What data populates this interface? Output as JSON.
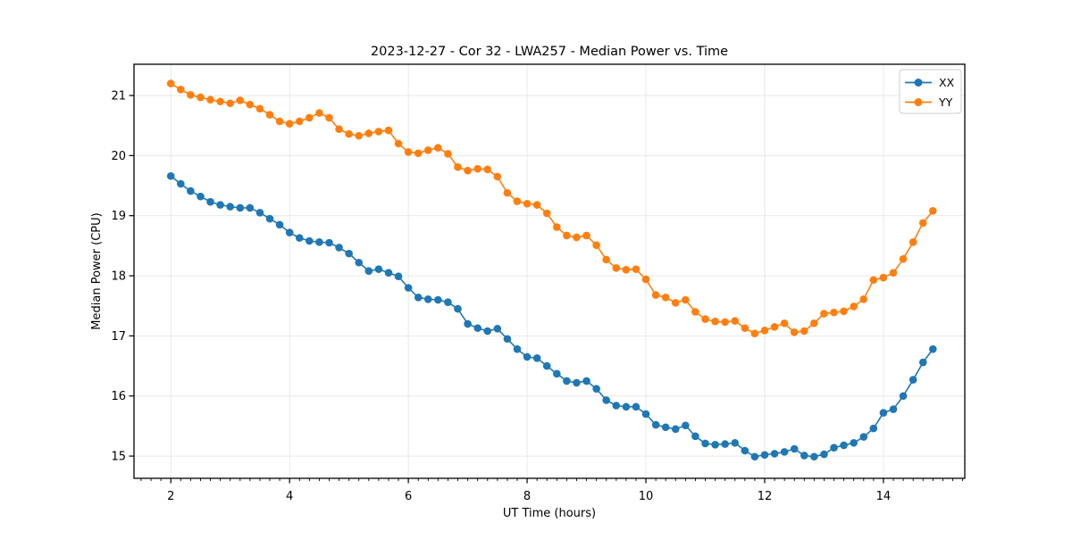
{
  "chart_data": {
    "type": "line",
    "title": "2023-12-27 - Cor 32 - LWA257 - Median Power vs. Time",
    "xlabel": "UT Time (hours)",
    "ylabel": "Median Power (CPU)",
    "grid": true,
    "legend_position": "upper right",
    "background_color": "#ffffff",
    "grid_color": "#e6e6e6",
    "spine_color": "#000000",
    "xlim": [
      1.38,
      15.37
    ],
    "ylim": [
      14.63,
      21.52
    ],
    "xticks": [
      2,
      4,
      6,
      8,
      10,
      12,
      14
    ],
    "yticks": [
      15,
      16,
      17,
      18,
      19,
      20,
      21
    ],
    "x_minor_step": 0.16667,
    "marker": "circle",
    "x": [
      2,
      2.167,
      2.333,
      2.5,
      2.667,
      2.833,
      3,
      3.167,
      3.333,
      3.5,
      3.667,
      3.833,
      4,
      4.167,
      4.333,
      4.5,
      4.667,
      4.833,
      5,
      5.167,
      5.333,
      5.5,
      5.667,
      5.833,
      6,
      6.167,
      6.333,
      6.5,
      6.667,
      6.833,
      7,
      7.167,
      7.333,
      7.5,
      7.667,
      7.833,
      8,
      8.167,
      8.333,
      8.5,
      8.667,
      8.833,
      9,
      9.167,
      9.333,
      9.5,
      9.667,
      9.833,
      10,
      10.167,
      10.333,
      10.5,
      10.667,
      10.833,
      11,
      11.167,
      11.333,
      11.5,
      11.667,
      11.833,
      12,
      12.167,
      12.333,
      12.5,
      12.667,
      12.833,
      13,
      13.167,
      13.333,
      13.5,
      13.667,
      13.833,
      14,
      14.167,
      14.333,
      14.5,
      14.667,
      14.833
    ],
    "series": [
      {
        "name": "XX",
        "color": "#1f77b4",
        "values": [
          19.66,
          19.53,
          19.41,
          19.32,
          19.23,
          19.18,
          19.15,
          19.13,
          19.13,
          19.05,
          18.95,
          18.85,
          18.72,
          18.63,
          18.58,
          18.56,
          18.55,
          18.47,
          18.37,
          18.22,
          18.08,
          18.11,
          18.05,
          17.99,
          17.8,
          17.64,
          17.61,
          17.6,
          17.56,
          17.45,
          17.2,
          17.13,
          17.08,
          17.12,
          16.95,
          16.78,
          16.65,
          16.63,
          16.5,
          16.37,
          16.25,
          16.22,
          16.25,
          16.12,
          15.93,
          15.84,
          15.82,
          15.82,
          15.7,
          15.52,
          15.48,
          15.45,
          15.51,
          15.33,
          15.21,
          15.19,
          15.2,
          15.22,
          15.09,
          14.99,
          15.02,
          15.04,
          15.07,
          15.12,
          15.01,
          14.99,
          15.03,
          15.14,
          15.18,
          15.22,
          15.32,
          15.46,
          15.72,
          15.78,
          16.0,
          16.27,
          16.56,
          16.78
        ]
      },
      {
        "name": "YY",
        "color": "#ff7f0e",
        "values": [
          21.2,
          21.1,
          21.01,
          20.97,
          20.93,
          20.9,
          20.87,
          20.92,
          20.85,
          20.78,
          20.68,
          20.57,
          20.53,
          20.57,
          20.63,
          20.71,
          20.63,
          20.44,
          20.36,
          20.33,
          20.37,
          20.4,
          20.42,
          20.2,
          20.06,
          20.04,
          20.09,
          20.13,
          20.03,
          19.81,
          19.75,
          19.78,
          19.77,
          19.65,
          19.38,
          19.24,
          19.2,
          19.18,
          19.04,
          18.81,
          18.67,
          18.64,
          18.67,
          18.51,
          18.27,
          18.13,
          18.1,
          18.11,
          17.94,
          17.68,
          17.64,
          17.55,
          17.6,
          17.4,
          17.28,
          17.24,
          17.23,
          17.25,
          17.13,
          17.04,
          17.09,
          17.15,
          17.21,
          17.06,
          17.08,
          17.21,
          17.37,
          17.39,
          17.41,
          17.49,
          17.61,
          17.93,
          17.97,
          18.05,
          18.28,
          18.56,
          18.88,
          19.08
        ]
      }
    ]
  }
}
